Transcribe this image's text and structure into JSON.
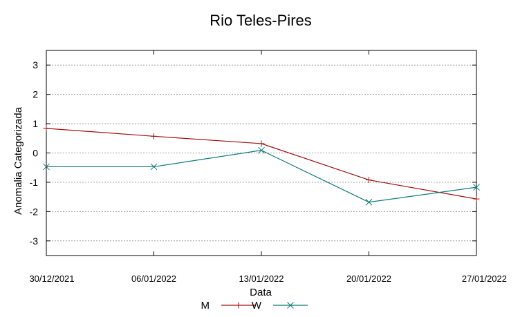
{
  "chart_data": {
    "type": "line",
    "title": "Rio Teles-Pires",
    "xlabel": "Data",
    "ylabel": "Anomalia Categorizada",
    "categories": [
      "30/12/2021",
      "06/01/2022",
      "13/01/2022",
      "20/01/2022",
      "27/01/2022"
    ],
    "ylim": [
      -3.5,
      3.5
    ],
    "yticks": [
      3,
      2,
      1,
      0,
      -1,
      -2,
      -3
    ],
    "ytick_labels": [
      "3",
      "2",
      "1",
      "0",
      "-1",
      "-2",
      "-3"
    ],
    "grid": true,
    "legend_position": "bottom",
    "series": [
      {
        "name": "M",
        "color": "#a01010",
        "marker": "plus",
        "values": [
          0.84,
          0.57,
          0.32,
          -0.92,
          -1.57
        ]
      },
      {
        "name": "W",
        "color": "#0f7a7a",
        "marker": "cross",
        "values": [
          -0.47,
          -0.47,
          0.09,
          -1.68,
          -1.17
        ]
      }
    ]
  }
}
